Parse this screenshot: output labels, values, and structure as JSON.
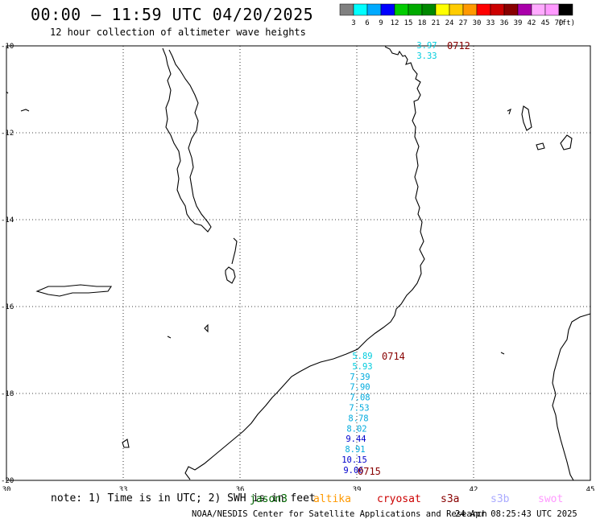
{
  "header": {
    "title": "00:00 – 11:59 UTC 04/20/2025",
    "subtitle": "12 hour collection of altimeter wave heights"
  },
  "colorbar": {
    "unit": "(ft)",
    "colors": [
      "#808080",
      "#00ffff",
      "#00aaff",
      "#0000ff",
      "#00cc00",
      "#00aa00",
      "#008800",
      "#ffff00",
      "#ffcc00",
      "#ff9900",
      "#ff0000",
      "#cc0000",
      "#880000",
      "#aa00aa",
      "#ffaaff",
      "#ff99ff",
      "#000000"
    ],
    "labels": [
      "3",
      "6",
      "9",
      "12",
      "15",
      "18",
      "21",
      "24",
      "27",
      "30",
      "33",
      "36",
      "39",
      "42",
      "45",
      "70"
    ]
  },
  "map": {
    "lon_ticks": [
      "30",
      "33",
      "36",
      "39",
      "42",
      "45"
    ],
    "lat_ticks": [
      "-10",
      "-12",
      "-14",
      "-16",
      "-18",
      "-20"
    ],
    "lon_range": [
      30,
      45
    ],
    "lat_range": [
      -20,
      -10
    ]
  },
  "tracks": [
    {
      "time_label": "0712",
      "label_color": "#880000",
      "points": [
        {
          "value": "3.97",
          "color": "#00ccdd"
        },
        {
          "value": "3.33",
          "color": "#00ccdd"
        }
      ]
    },
    {
      "time_label": "0714",
      "label_color": "#880000",
      "points": [
        {
          "value": "5.89",
          "color": "#00ccdd"
        },
        {
          "value": "5.93",
          "color": "#00ccdd"
        },
        {
          "value": "7.39",
          "color": "#00aadd"
        },
        {
          "value": "7.90",
          "color": "#00aadd"
        },
        {
          "value": "7.08",
          "color": "#00aadd"
        },
        {
          "value": "7.53",
          "color": "#00aadd"
        },
        {
          "value": "8.78",
          "color": "#00aadd"
        },
        {
          "value": "8.02",
          "color": "#00aadd"
        },
        {
          "value": "9.44",
          "color": "#0000cc"
        },
        {
          "value": "8.91",
          "color": "#00aadd"
        },
        {
          "value": "10.15",
          "color": "#0000cc"
        },
        {
          "value": "9.06",
          "color": "#0000cc"
        }
      ]
    },
    {
      "time_label": "0715",
      "label_color": "#880000",
      "points": []
    }
  ],
  "footer": {
    "note": "note: 1) Time is in UTC; 2) SWH is in feet",
    "satellites": [
      {
        "name": "jason3",
        "color": "#006600"
      },
      {
        "name": "altika",
        "color": "#ff9900"
      },
      {
        "name": "cryosat",
        "color": "#cc0000"
      },
      {
        "name": "s3a",
        "color": "#880000"
      },
      {
        "name": "s3b",
        "color": "#aaaaff"
      },
      {
        "name": "swot",
        "color": "#ff99ff"
      }
    ],
    "credit": "NOAA/NESDIS Center for Satellite Applications and Research",
    "timestamp": "24 Apr 08:25:43 UTC 2025"
  }
}
